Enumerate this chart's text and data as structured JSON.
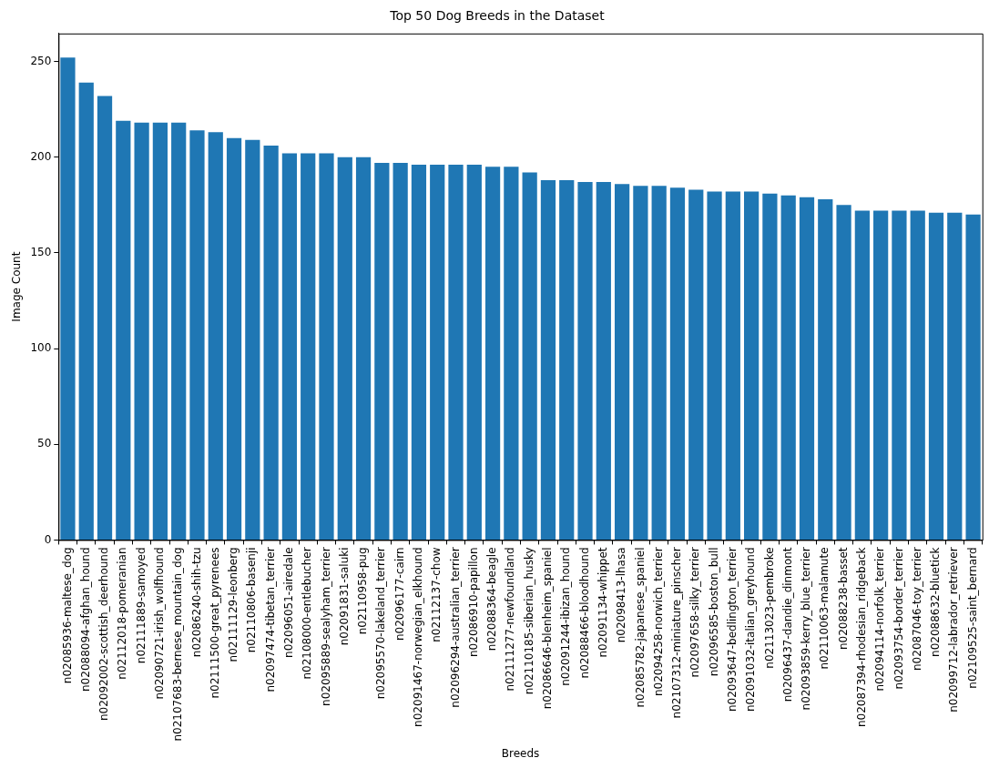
{
  "chart_data": {
    "type": "bar",
    "title": "Top 50 Dog Breeds in the Dataset",
    "xlabel": "Breeds",
    "ylabel": "Image Count",
    "categories": [
      "n02085936-maltese_dog",
      "n02088094-afghan_hound",
      "n02092002-scottish_deerhound",
      "n02112018-pomeranian",
      "n02111889-samoyed",
      "n02090721-irish_wolfhound",
      "n02107683-bernese_mountain_dog",
      "n02086240-shih-tzu",
      "n02111500-great_pyrenees",
      "n02111129-leonberg",
      "n02110806-basenji",
      "n02097474-tibetan_terrier",
      "n02096051-airedale",
      "n02108000-entlebucher",
      "n02095889-sealyham_terrier",
      "n02091831-saluki",
      "n02110958-pug",
      "n02095570-lakeland_terrier",
      "n02096177-cairn",
      "n02091467-norwegian_elkhound",
      "n02112137-chow",
      "n02096294-australian_terrier",
      "n02086910-papillon",
      "n02088364-beagle",
      "n02111277-newfoundland",
      "n02110185-siberian_husky",
      "n02086646-blenheim_spaniel",
      "n02091244-ibizan_hound",
      "n02088466-bloodhound",
      "n02091134-whippet",
      "n02098413-lhasa",
      "n02085782-japanese_spaniel",
      "n02094258-norwich_terrier",
      "n02107312-miniature_pinscher",
      "n02097658-silky_terrier",
      "n02096585-boston_bull",
      "n02093647-bedlington_terrier",
      "n02091032-italian_greyhound",
      "n02113023-pembroke",
      "n02096437-dandie_dinmont",
      "n02093859-kerry_blue_terrier",
      "n02110063-malamute",
      "n02088238-basset",
      "n02087394-rhodesian_ridgeback",
      "n02094114-norfolk_terrier",
      "n02093754-border_terrier",
      "n02087046-toy_terrier",
      "n02088632-bluetick",
      "n02099712-labrador_retriever",
      "n02109525-saint_bernard"
    ],
    "values": [
      252,
      239,
      232,
      219,
      218,
      218,
      218,
      214,
      213,
      210,
      209,
      206,
      202,
      202,
      202,
      200,
      200,
      197,
      197,
      196,
      196,
      196,
      196,
      195,
      195,
      192,
      188,
      188,
      187,
      187,
      186,
      185,
      185,
      184,
      183,
      182,
      182,
      182,
      181,
      180,
      179,
      178,
      175,
      172,
      172,
      172,
      172,
      171,
      171,
      170
    ],
    "color": "#1f77b4",
    "ylim": [
      0,
      264.6
    ],
    "yticks": [
      0,
      50,
      100,
      150,
      200,
      250
    ],
    "grid": false,
    "legend": false
  }
}
